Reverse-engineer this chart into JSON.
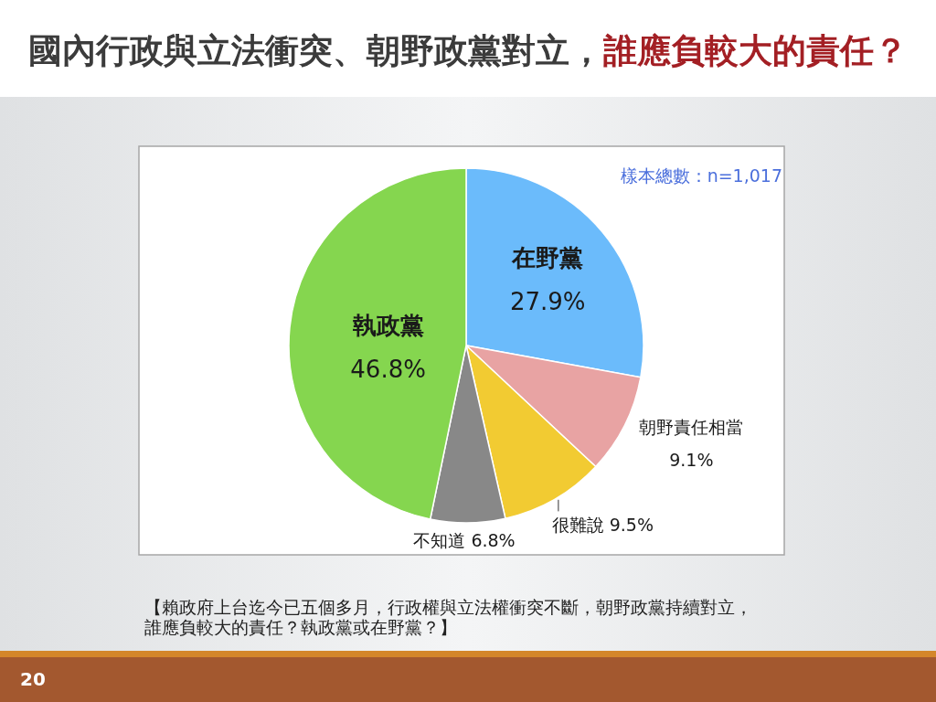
{
  "chart_data": {
    "type": "pie",
    "title": "國內行政與立法衝突、朝野政黨對立，誰應負較大的責任？",
    "categories": [
      "在野黨",
      "朝野責任相當",
      "很難說",
      "不知道",
      "執政黨"
    ],
    "values": [
      27.9,
      9.1,
      9.5,
      6.8,
      46.8
    ],
    "value_labels": [
      "27.9%",
      "9.1%",
      "9.5%",
      "6.8%",
      "46.8%"
    ],
    "colors": [
      "#6bbbfb",
      "#e8a3a3",
      "#f2cb32",
      "#888888",
      "#85d64f"
    ],
    "annotations": [
      "樣本總數：n=1,017",
      "【賴政府上台迄今已五個多月，行政權與立法權衝突不斷，朝野政黨持續對立，誰應負較大的責任？執政黨或在野黨？】",
      "20"
    ]
  }
}
